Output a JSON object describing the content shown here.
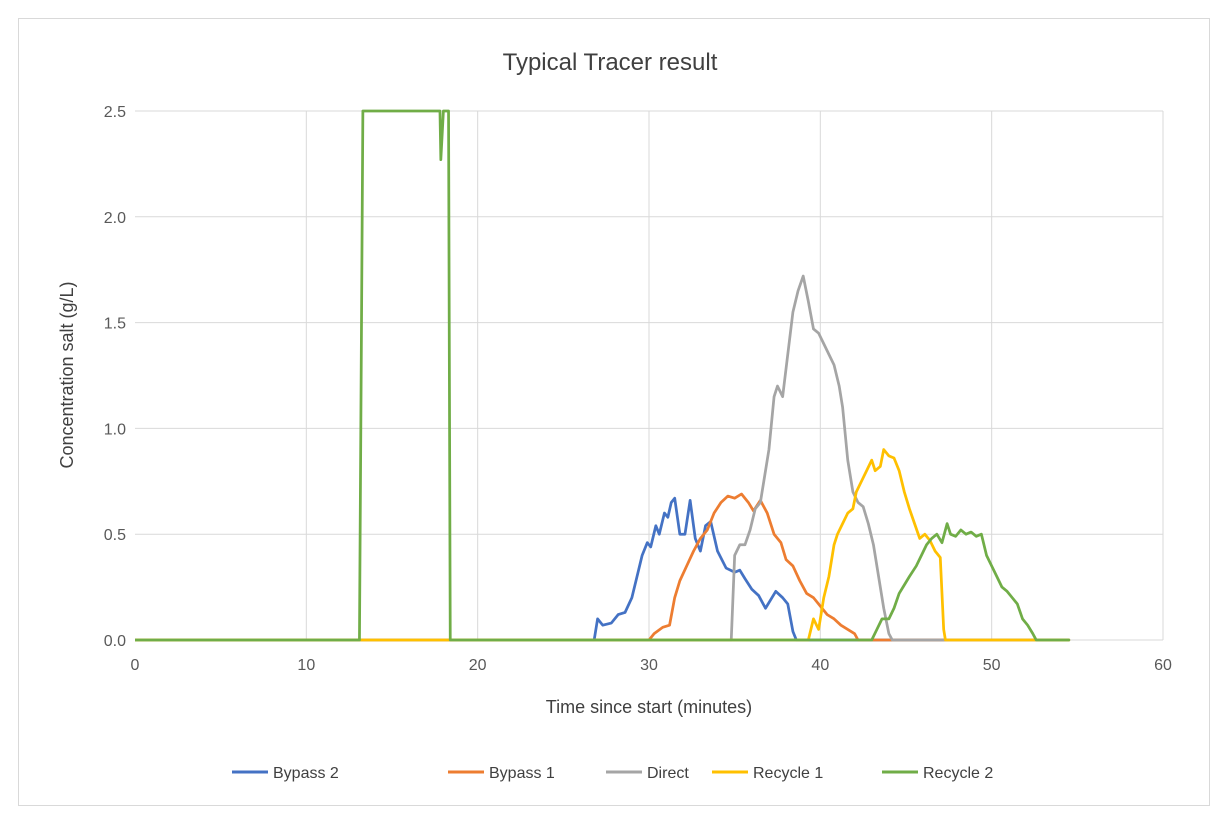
{
  "chart_data": {
    "type": "line",
    "title": "Typical Tracer result",
    "xlabel": "Time since start (minutes)",
    "ylabel": "Concentration salt (g/L)",
    "xlim": [
      0,
      60
    ],
    "ylim": [
      0,
      2.5
    ],
    "x_ticks": [
      "0",
      "10",
      "20",
      "30",
      "40",
      "50",
      "60"
    ],
    "y_ticks": [
      "0.0",
      "0.5",
      "1.0",
      "1.5",
      "2.0",
      "2.5"
    ],
    "grid": true,
    "legend_position": "bottom",
    "series": [
      {
        "name": "Bypass 2",
        "color": "#4472C4",
        "points": [
          [
            0,
            0
          ],
          [
            26.8,
            0
          ],
          [
            27.0,
            0.1
          ],
          [
            27.3,
            0.07
          ],
          [
            27.8,
            0.08
          ],
          [
            28.2,
            0.12
          ],
          [
            28.6,
            0.13
          ],
          [
            29.0,
            0.2
          ],
          [
            29.3,
            0.3
          ],
          [
            29.6,
            0.4
          ],
          [
            29.9,
            0.46
          ],
          [
            30.1,
            0.44
          ],
          [
            30.4,
            0.54
          ],
          [
            30.6,
            0.5
          ],
          [
            30.9,
            0.6
          ],
          [
            31.1,
            0.58
          ],
          [
            31.3,
            0.65
          ],
          [
            31.5,
            0.67
          ],
          [
            31.8,
            0.5
          ],
          [
            32.1,
            0.5
          ],
          [
            32.4,
            0.66
          ],
          [
            32.7,
            0.48
          ],
          [
            33.0,
            0.42
          ],
          [
            33.3,
            0.54
          ],
          [
            33.6,
            0.56
          ],
          [
            34.0,
            0.42
          ],
          [
            34.5,
            0.34
          ],
          [
            35.0,
            0.32
          ],
          [
            35.3,
            0.33
          ],
          [
            35.6,
            0.29
          ],
          [
            36.0,
            0.24
          ],
          [
            36.4,
            0.21
          ],
          [
            36.8,
            0.15
          ],
          [
            37.1,
            0.19
          ],
          [
            37.4,
            0.23
          ],
          [
            37.8,
            0.2
          ],
          [
            38.1,
            0.17
          ],
          [
            38.4,
            0.04
          ],
          [
            38.6,
            0
          ],
          [
            54.5,
            0
          ]
        ]
      },
      {
        "name": "Bypass 1",
        "color": "#ED7D31",
        "points": [
          [
            0,
            0
          ],
          [
            30.0,
            0
          ],
          [
            30.3,
            0.03
          ],
          [
            30.8,
            0.06
          ],
          [
            31.2,
            0.07
          ],
          [
            31.5,
            0.2
          ],
          [
            31.8,
            0.28
          ],
          [
            32.2,
            0.35
          ],
          [
            32.6,
            0.42
          ],
          [
            33.0,
            0.48
          ],
          [
            33.4,
            0.52
          ],
          [
            33.8,
            0.6
          ],
          [
            34.2,
            0.65
          ],
          [
            34.6,
            0.68
          ],
          [
            35.0,
            0.67
          ],
          [
            35.4,
            0.69
          ],
          [
            35.8,
            0.65
          ],
          [
            36.1,
            0.61
          ],
          [
            36.5,
            0.66
          ],
          [
            36.9,
            0.6
          ],
          [
            37.3,
            0.5
          ],
          [
            37.7,
            0.46
          ],
          [
            38.0,
            0.38
          ],
          [
            38.4,
            0.35
          ],
          [
            38.8,
            0.28
          ],
          [
            39.2,
            0.22
          ],
          [
            39.6,
            0.2
          ],
          [
            40.0,
            0.16
          ],
          [
            40.4,
            0.12
          ],
          [
            40.8,
            0.1
          ],
          [
            41.2,
            0.07
          ],
          [
            41.6,
            0.05
          ],
          [
            42.0,
            0.03
          ],
          [
            42.2,
            0
          ],
          [
            54.5,
            0
          ]
        ]
      },
      {
        "name": "Direct",
        "color": "#A5A5A5",
        "points": [
          [
            0,
            0
          ],
          [
            34.8,
            0
          ],
          [
            35.0,
            0.4
          ],
          [
            35.3,
            0.45
          ],
          [
            35.6,
            0.45
          ],
          [
            35.9,
            0.52
          ],
          [
            36.2,
            0.62
          ],
          [
            36.5,
            0.65
          ],
          [
            36.8,
            0.8
          ],
          [
            37.0,
            0.9
          ],
          [
            37.3,
            1.15
          ],
          [
            37.5,
            1.2
          ],
          [
            37.8,
            1.15
          ],
          [
            38.1,
            1.35
          ],
          [
            38.4,
            1.55
          ],
          [
            38.7,
            1.65
          ],
          [
            39.0,
            1.72
          ],
          [
            39.3,
            1.6
          ],
          [
            39.6,
            1.47
          ],
          [
            39.9,
            1.45
          ],
          [
            40.2,
            1.4
          ],
          [
            40.5,
            1.35
          ],
          [
            40.8,
            1.3
          ],
          [
            41.1,
            1.2
          ],
          [
            41.3,
            1.1
          ],
          [
            41.6,
            0.85
          ],
          [
            41.9,
            0.7
          ],
          [
            42.2,
            0.65
          ],
          [
            42.5,
            0.63
          ],
          [
            42.8,
            0.55
          ],
          [
            43.1,
            0.45
          ],
          [
            43.4,
            0.3
          ],
          [
            43.7,
            0.15
          ],
          [
            44.0,
            0.03
          ],
          [
            44.2,
            0
          ],
          [
            54.5,
            0
          ]
        ]
      },
      {
        "name": "Recycle 1",
        "color": "#FFC000",
        "points": [
          [
            0,
            0
          ],
          [
            39.3,
            0
          ],
          [
            39.6,
            0.1
          ],
          [
            39.9,
            0.05
          ],
          [
            40.2,
            0.2
          ],
          [
            40.5,
            0.3
          ],
          [
            40.8,
            0.45
          ],
          [
            41.0,
            0.5
          ],
          [
            41.3,
            0.55
          ],
          [
            41.6,
            0.6
          ],
          [
            41.9,
            0.62
          ],
          [
            42.1,
            0.7
          ],
          [
            42.4,
            0.75
          ],
          [
            42.7,
            0.8
          ],
          [
            43.0,
            0.85
          ],
          [
            43.2,
            0.8
          ],
          [
            43.5,
            0.82
          ],
          [
            43.7,
            0.9
          ],
          [
            44.0,
            0.87
          ],
          [
            44.3,
            0.86
          ],
          [
            44.6,
            0.8
          ],
          [
            44.9,
            0.7
          ],
          [
            45.2,
            0.62
          ],
          [
            45.5,
            0.55
          ],
          [
            45.8,
            0.48
          ],
          [
            46.1,
            0.5
          ],
          [
            46.4,
            0.47
          ],
          [
            46.7,
            0.42
          ],
          [
            47.0,
            0.39
          ],
          [
            47.2,
            0.05
          ],
          [
            47.3,
            0
          ],
          [
            54.5,
            0
          ]
        ]
      },
      {
        "name": "Recycle 2",
        "color": "#70AD47",
        "points": [
          [
            0,
            0
          ],
          [
            13.1,
            0
          ],
          [
            13.3,
            2.5
          ],
          [
            17.8,
            2.5
          ],
          [
            17.85,
            2.27
          ],
          [
            18.0,
            2.5
          ],
          [
            18.2,
            2.5
          ],
          [
            18.3,
            2.5
          ],
          [
            18.4,
            0
          ],
          [
            43.0,
            0
          ],
          [
            43.3,
            0.05
          ],
          [
            43.6,
            0.1
          ],
          [
            44.0,
            0.1
          ],
          [
            44.3,
            0.15
          ],
          [
            44.6,
            0.22
          ],
          [
            44.9,
            0.26
          ],
          [
            45.2,
            0.3
          ],
          [
            45.6,
            0.35
          ],
          [
            45.9,
            0.4
          ],
          [
            46.2,
            0.45
          ],
          [
            46.5,
            0.48
          ],
          [
            46.8,
            0.5
          ],
          [
            47.1,
            0.46
          ],
          [
            47.4,
            0.55
          ],
          [
            47.6,
            0.5
          ],
          [
            47.9,
            0.49
          ],
          [
            48.2,
            0.52
          ],
          [
            48.5,
            0.5
          ],
          [
            48.8,
            0.51
          ],
          [
            49.1,
            0.49
          ],
          [
            49.4,
            0.5
          ],
          [
            49.7,
            0.4
          ],
          [
            50.0,
            0.35
          ],
          [
            50.3,
            0.3
          ],
          [
            50.6,
            0.25
          ],
          [
            50.9,
            0.23
          ],
          [
            51.2,
            0.2
          ],
          [
            51.5,
            0.17
          ],
          [
            51.8,
            0.1
          ],
          [
            52.1,
            0.07
          ],
          [
            52.4,
            0.03
          ],
          [
            52.6,
            0
          ],
          [
            54.5,
            0
          ]
        ]
      }
    ]
  }
}
